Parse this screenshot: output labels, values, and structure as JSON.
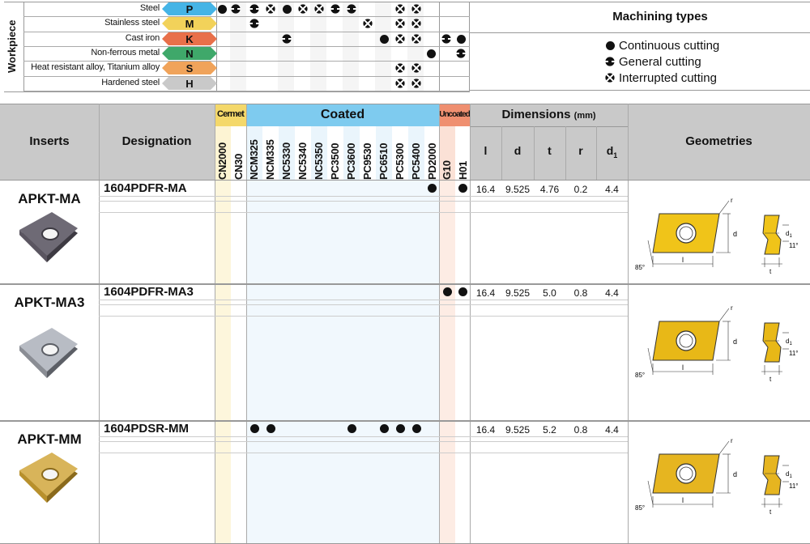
{
  "workpiece_table": {
    "side_label": "Workpiece",
    "rows": [
      {
        "material": "Steel",
        "iso": "P",
        "color": "#45b4e6"
      },
      {
        "material": "Stainless steel",
        "iso": "M",
        "color": "#f2d25a"
      },
      {
        "material": "Cast iron",
        "iso": "K",
        "color": "#e8704a"
      },
      {
        "material": "Non-ferrous metal",
        "iso": "N",
        "color": "#3fa86a"
      },
      {
        "material": "Heat resistant alloy, Titanium alloy",
        "iso": "S",
        "color": "#f0a35a"
      },
      {
        "material": "Hardened steel",
        "iso": "H",
        "color": "#c9c9c9"
      }
    ]
  },
  "machining_types": {
    "title": "Machining types",
    "items": [
      {
        "icon": "continuous-cutting-icon",
        "label": "Continuous cutting"
      },
      {
        "icon": "general-cutting-icon",
        "label": "General cutting"
      },
      {
        "icon": "interrupted-cutting-icon",
        "label": "Interrupted cutting"
      }
    ]
  },
  "header": {
    "inserts": "Inserts",
    "designation": "Designation",
    "cermet": "Cermet",
    "coated": "Coated",
    "uncoated": "Uncoated",
    "dimensions": "Dimensions",
    "dimensions_unit": "(mm)",
    "geometries": "Geometries",
    "grades": [
      "CN2000",
      "CN30",
      "NCM325",
      "NCM335",
      "NC5330",
      "NC5340",
      "NC5350",
      "PC3500",
      "PC3600",
      "PC9530",
      "PC6510",
      "PC5300",
      "PC5400",
      "PD2000",
      "G10",
      "H01"
    ],
    "dims": [
      "l",
      "d",
      "t",
      "r",
      "d1"
    ]
  },
  "inserts": [
    {
      "name": "APKT-MA",
      "designation": "1604PDFR-MA",
      "grades": [
        "PD2000",
        "H01"
      ],
      "l": "16.4",
      "d": "9.525",
      "t": "4.76",
      "r": "0.2",
      "d1": "4.4"
    },
    {
      "name": "APKT-MA3",
      "designation": "1604PDFR-MA3",
      "grades": [
        "G10",
        "H01"
      ],
      "l": "16.4",
      "d": "9.525",
      "t": "5.0",
      "r": "0.8",
      "d1": "4.4"
    },
    {
      "name": "APKT-MM",
      "designation": "1604PDSR-MM",
      "grades": [
        "NCM325",
        "NCM335",
        "PC3600",
        "PC6510",
        "PC5300",
        "PC5400"
      ],
      "l": "16.4",
      "d": "9.525",
      "t": "5.2",
      "r": "0.8",
      "d1": "4.4"
    }
  ],
  "geometry_labels": {
    "d": "d",
    "d1": "d1",
    "l": "l",
    "t": "t",
    "r": "r",
    "angle_85": "85°",
    "angle_11": "11°"
  }
}
